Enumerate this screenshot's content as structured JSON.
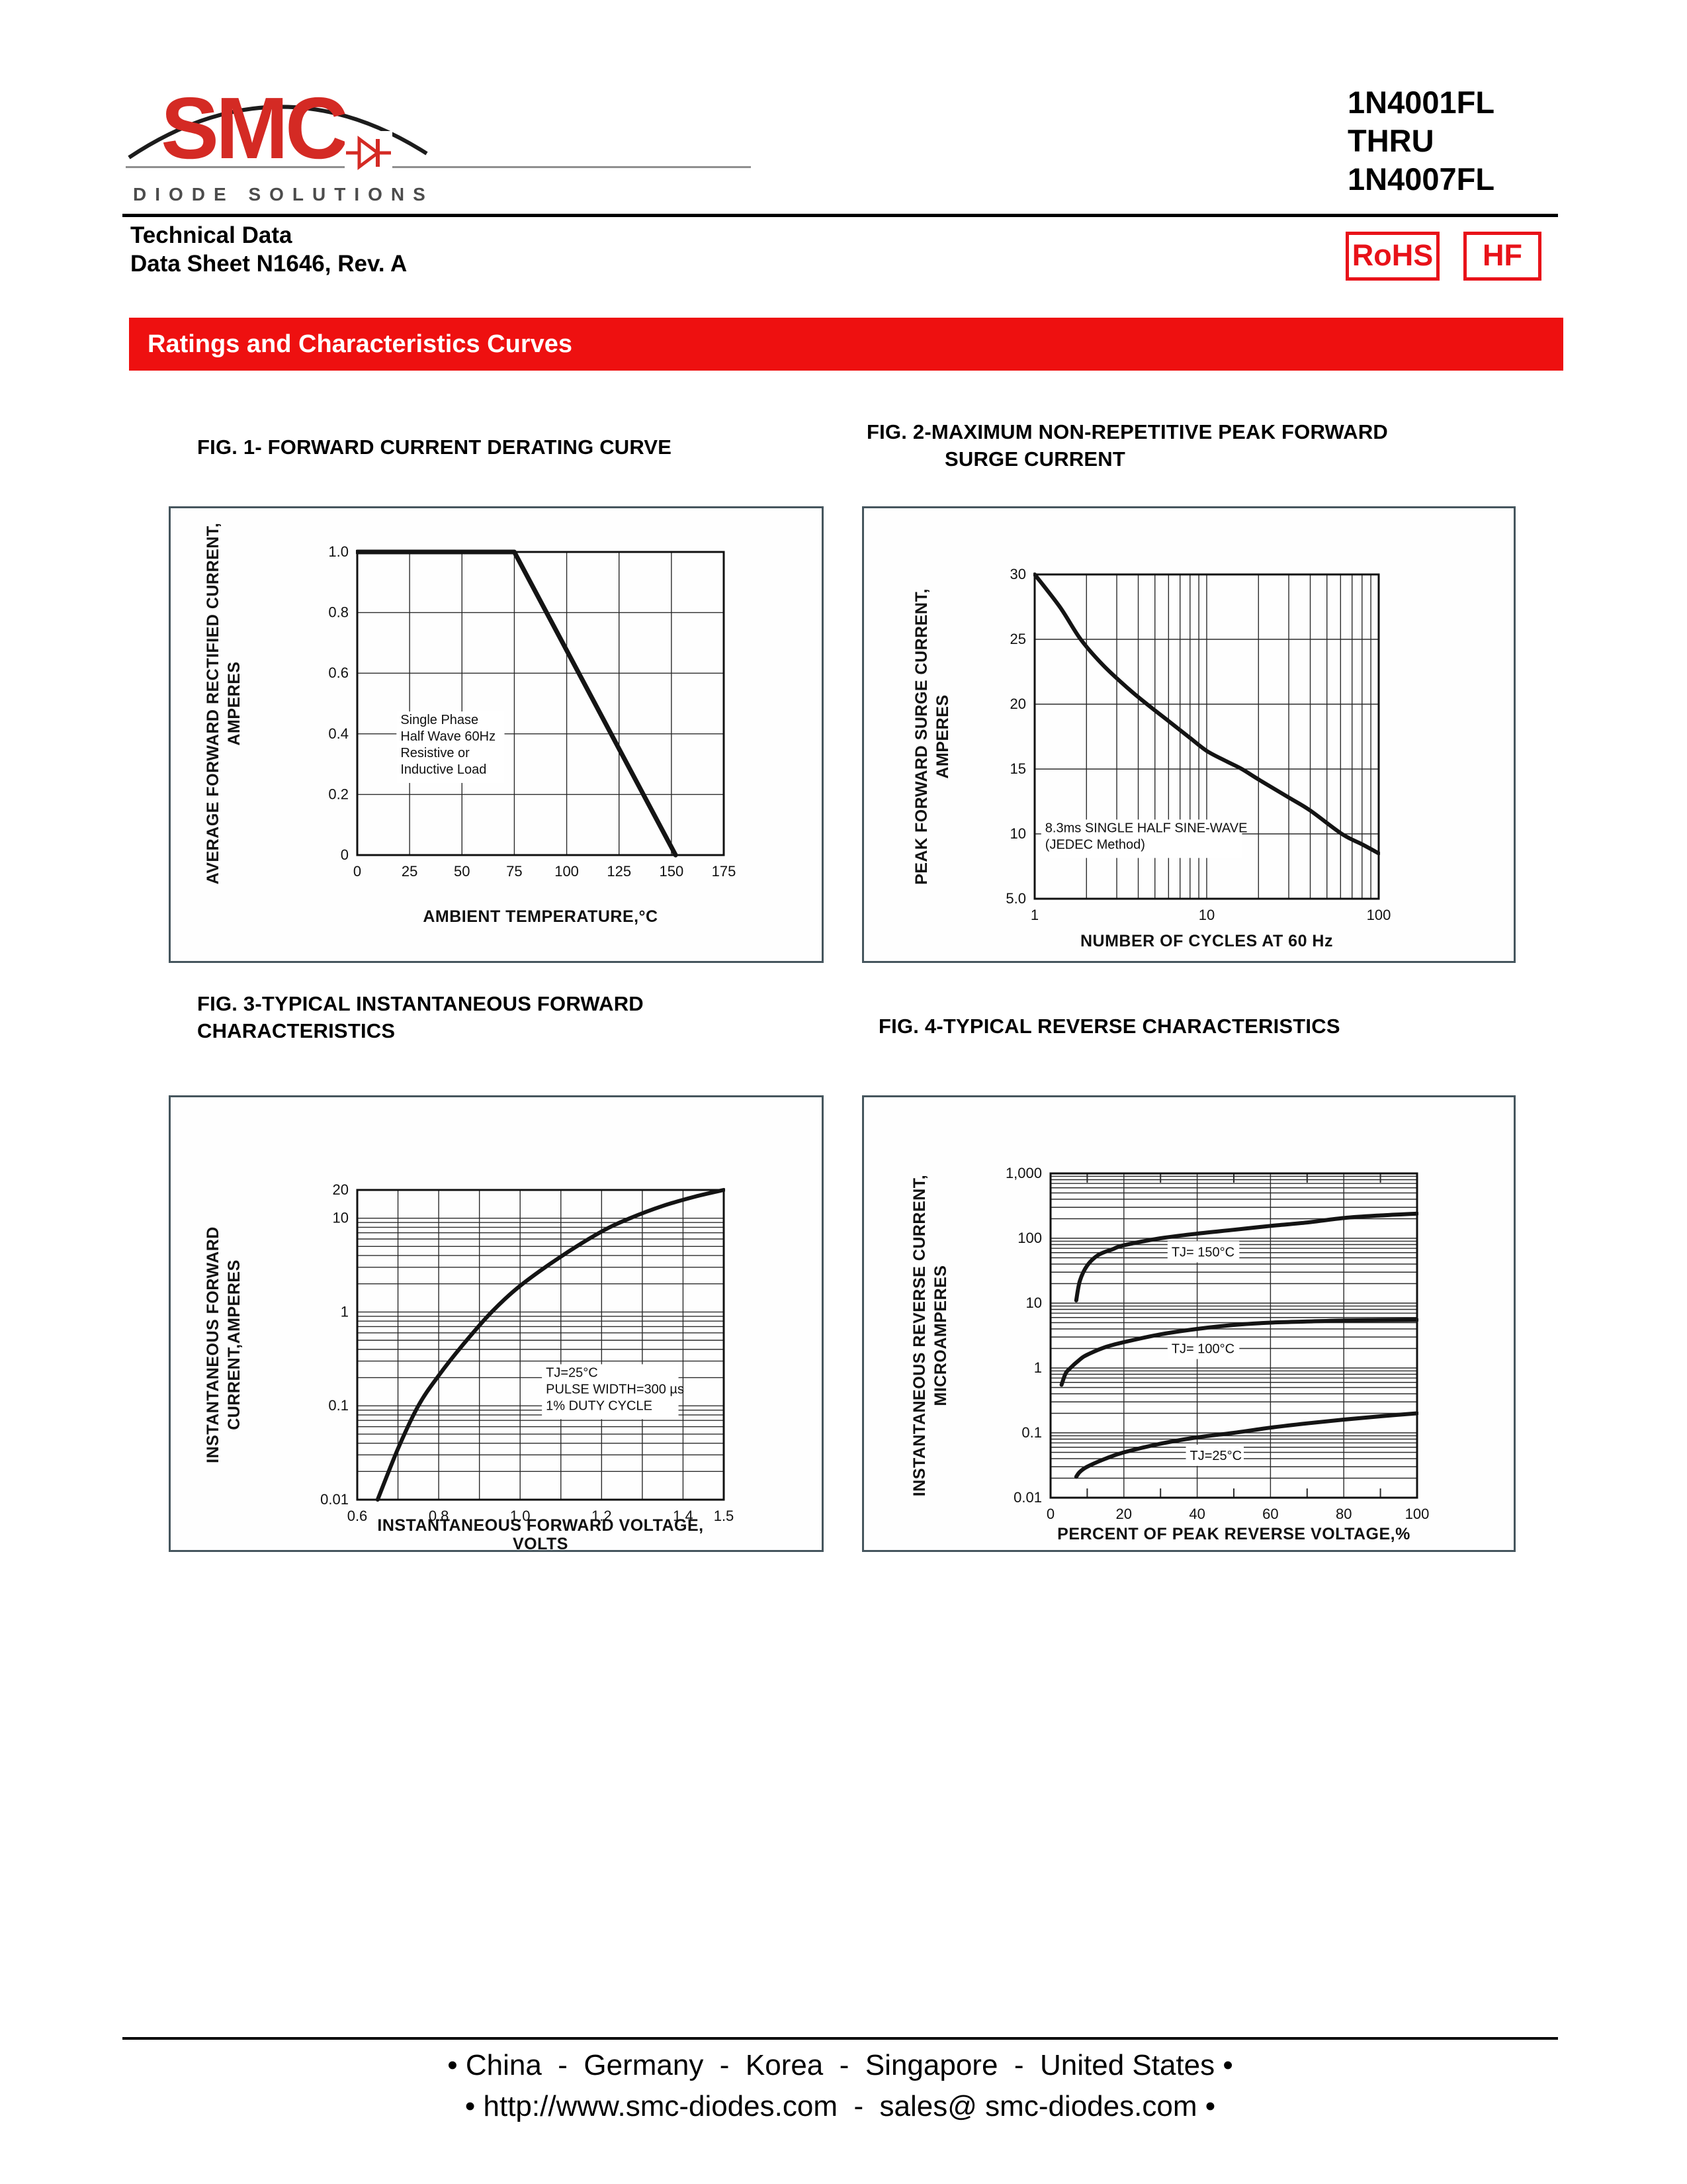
{
  "header": {
    "logo": {
      "brand": "SMC",
      "tagline": "DIODE SOLUTIONS",
      "brand_color": "#d42a24"
    },
    "doc_line1": "Technical Data",
    "doc_line2": "Data Sheet N1646, Rev. A",
    "part_numbers": [
      "1N4001FL",
      "THRU",
      "1N4007FL"
    ],
    "badges": {
      "rohs": "RoHS",
      "hf": "HF",
      "badge_color": "#e81219"
    }
  },
  "banner": {
    "title": "Ratings and Characteristics Curves",
    "bg": "#ee1010",
    "fg": "#ffffff"
  },
  "figures": [
    {
      "title_lines": [
        "FIG. 1- FORWARD CURRENT DERATING CURVE",
        ""
      ]
    },
    {
      "title_lines": [
        "FIG. 2-MAXIMUM NON-REPETITIVE PEAK FORWARD",
        "SURGE CURRENT"
      ]
    },
    {
      "title_lines": [
        "FIG. 3-TYPICAL INSTANTANEOUS FORWARD",
        "CHARACTERISTICS"
      ]
    },
    {
      "title_lines": [
        "FIG. 4-TYPICAL REVERSE CHARACTERISTICS",
        ""
      ]
    }
  ],
  "chart_data": [
    {
      "type": "line",
      "title": "FIG. 1- FORWARD CURRENT DERATING CURVE",
      "xlabel": "AMBIENT TEMPERATURE,°C",
      "ylabel": "AVERAGE FORWARD RECTIFIED CURRENT,\nAMPERES",
      "xscale": "linear",
      "yscale": "linear",
      "xlim": [
        0,
        175
      ],
      "ylim": [
        0,
        1.0
      ],
      "xticks": [
        {
          "v": 0,
          "label": "0"
        },
        {
          "v": 25,
          "label": "25"
        },
        {
          "v": 50,
          "label": "50"
        },
        {
          "v": 75,
          "label": "75"
        },
        {
          "v": 100,
          "label": "100"
        },
        {
          "v": 125,
          "label": "125"
        },
        {
          "v": 150,
          "label": "150"
        },
        {
          "v": 175,
          "label": "175"
        }
      ],
      "yticks": [
        {
          "v": 0,
          "label": "0"
        },
        {
          "v": 0.2,
          "label": "0.2"
        },
        {
          "v": 0.4,
          "label": "0.4"
        },
        {
          "v": 0.6,
          "label": "0.6"
        },
        {
          "v": 0.8,
          "label": "0.8"
        },
        {
          "v": 1.0,
          "label": "1.0"
        }
      ],
      "xgridlines": [
        25,
        50,
        75,
        100,
        125,
        150
      ],
      "ygridlines": [
        0.2,
        0.4,
        0.6,
        0.8
      ],
      "annotation": {
        "x": 20,
        "y": 0.465,
        "lines": [
          "Single Phase",
          "Half Wave 60Hz",
          "Resistive or",
          "Inductive Load"
        ]
      },
      "series": [
        {
          "name": "derating-curve",
          "smooth": false,
          "x": [
            0,
            75,
            152
          ],
          "y": [
            1.0,
            1.0,
            0
          ]
        }
      ]
    },
    {
      "type": "line",
      "title": "FIG. 2-MAXIMUM NON-REPETITIVE PEAK FORWARD SURGE CURRENT",
      "xlabel": "NUMBER OF CYCLES AT 60 Hz",
      "ylabel": "PEAK FORWARD SURGE CURRENT,\nAMPERES",
      "xscale": "log",
      "yscale": "linear",
      "xlim": [
        1,
        100
      ],
      "ylim": [
        5,
        30
      ],
      "xticks": [
        {
          "v": 1,
          "label": "1"
        },
        {
          "v": 10,
          "label": "10"
        },
        {
          "v": 100,
          "label": "100"
        }
      ],
      "yticks": [
        {
          "v": 5,
          "label": "5.0"
        },
        {
          "v": 10,
          "label": "10"
        },
        {
          "v": 15,
          "label": "15"
        },
        {
          "v": 20,
          "label": "20"
        },
        {
          "v": 25,
          "label": "25"
        },
        {
          "v": 30,
          "label": "30"
        }
      ],
      "ygridlines": [
        10,
        15,
        20,
        25
      ],
      "annotation": {
        "x": 1.13,
        "y": 10.9,
        "lines": [
          "8.3ms SINGLE HALF SINE-WAVE",
          "(JEDEC Method)"
        ]
      },
      "series": [
        {
          "name": "surge-curve",
          "x": [
            1,
            1.4,
            1.85,
            2.5,
            3.5,
            4.5,
            6,
            8,
            10,
            13,
            16,
            20,
            30,
            40,
            61,
            80,
            100
          ],
          "y": [
            30,
            27.5,
            25,
            23,
            21.2,
            20,
            18.7,
            17.4,
            16.4,
            15.6,
            15,
            14.2,
            12.8,
            11.8,
            10,
            9.2,
            8.5
          ]
        }
      ]
    },
    {
      "type": "line",
      "title": "FIG. 3-TYPICAL INSTANTANEOUS FORWARD CHARACTERISTICS",
      "xlabel": "INSTANTANEOUS FORWARD VOLTAGE,\nVOLTS",
      "ylabel": "INSTANTANEOUS FORWARD\nCURRENT,AMPERES",
      "xscale": "linear",
      "yscale": "log",
      "xlim": [
        0.6,
        1.5
      ],
      "ylim": [
        0.01,
        20
      ],
      "xticks": [
        {
          "v": 0.6,
          "label": "0.6"
        },
        {
          "v": 0.8,
          "label": "0.8"
        },
        {
          "v": 1.0,
          "label": "1.0"
        },
        {
          "v": 1.2,
          "label": "1.2"
        },
        {
          "v": 1.4,
          "label": "1.4"
        },
        {
          "v": 1.5,
          "label": "1.5"
        }
      ],
      "yticks": [
        {
          "v": 0.01,
          "label": "0.01"
        },
        {
          "v": 0.1,
          "label": "0.1"
        },
        {
          "v": 1,
          "label": "1"
        },
        {
          "v": 10,
          "label": "10"
        },
        {
          "v": 20,
          "label": "20"
        }
      ],
      "xgridlines": [
        0.7,
        0.8,
        0.9,
        1.0,
        1.1,
        1.2,
        1.3,
        1.4
      ],
      "annotation": {
        "x": 1.06,
        "y": 0.26,
        "lines": [
          "TJ=25°C",
          "PULSE WIDTH=300 µs",
          "1% DUTY CYCLE"
        ]
      },
      "series": [
        {
          "name": "vf-if-curve",
          "x": [
            0.65,
            0.7,
            0.75,
            0.8,
            0.86,
            0.93,
            1.0,
            1.1,
            1.2,
            1.27,
            1.35,
            1.43,
            1.5
          ],
          "y": [
            0.01,
            0.035,
            0.1,
            0.21,
            0.45,
            1.0,
            1.9,
            3.9,
            7.2,
            10,
            13.5,
            17,
            20
          ]
        }
      ]
    },
    {
      "type": "line",
      "title": "FIG. 4-TYPICAL REVERSE CHARACTERISTICS",
      "xlabel": "PERCENT OF PEAK REVERSE VOLTAGE,%",
      "ylabel": "INSTANTANEOUS REVERSE CURRENT,\nMICROAMPERES",
      "xscale": "linear",
      "yscale": "log",
      "xlim": [
        0,
        100
      ],
      "ylim": [
        0.01,
        1000
      ],
      "xticks": [
        {
          "v": 0,
          "label": "0"
        },
        {
          "v": 20,
          "label": "20"
        },
        {
          "v": 40,
          "label": "40"
        },
        {
          "v": 60,
          "label": "60"
        },
        {
          "v": 80,
          "label": "80"
        },
        {
          "v": 100,
          "label": "100"
        }
      ],
      "yticks": [
        {
          "v": 0.01,
          "label": "0.01"
        },
        {
          "v": 0.1,
          "label": "0.1"
        },
        {
          "v": 1,
          "label": "1"
        },
        {
          "v": 10,
          "label": "10"
        },
        {
          "v": 100,
          "label": "100"
        },
        {
          "v": 1000,
          "label": "1,000"
        }
      ],
      "xgridlines": [
        20,
        40,
        60,
        80
      ],
      "xminor_ticks": [
        10,
        30,
        50,
        70,
        90
      ],
      "series": [
        {
          "name": "tj-150-curve",
          "label": "TJ= 150°C",
          "label_at": {
            "x": 33,
            "y": 62
          },
          "x": [
            7,
            8,
            10,
            13,
            17,
            20,
            30,
            40,
            50,
            60,
            70,
            80,
            90,
            100
          ],
          "y": [
            11,
            22,
            38,
            55,
            68,
            78,
            100,
            118,
            135,
            155,
            175,
            205,
            225,
            240
          ]
        },
        {
          "name": "tj-100-curve",
          "label": "TJ= 100°C",
          "label_at": {
            "x": 33,
            "y": 2.0
          },
          "x": [
            3,
            4,
            5,
            8,
            10,
            15,
            20,
            30,
            40,
            50,
            60,
            70,
            80,
            90,
            100
          ],
          "y": [
            0.55,
            0.8,
            0.95,
            1.35,
            1.6,
            2.1,
            2.5,
            3.3,
            4.0,
            4.6,
            5.0,
            5.2,
            5.4,
            5.45,
            5.5
          ]
        },
        {
          "name": "tj-25-curve",
          "label": "TJ=25°C",
          "label_at": {
            "x": 38,
            "y": 0.045
          },
          "x": [
            7,
            8,
            10,
            15,
            20,
            30,
            40,
            50,
            60,
            70,
            80,
            90,
            100
          ],
          "y": [
            0.021,
            0.025,
            0.03,
            0.04,
            0.05,
            0.068,
            0.085,
            0.1,
            0.12,
            0.14,
            0.16,
            0.18,
            0.2
          ]
        }
      ]
    }
  ],
  "footer": {
    "line1": "• China  -  Germany  -  Korea  -  Singapore  -  United States •",
    "line2": "• http://www.smc-diodes.com  -  sales@ smc-diodes.com •"
  }
}
